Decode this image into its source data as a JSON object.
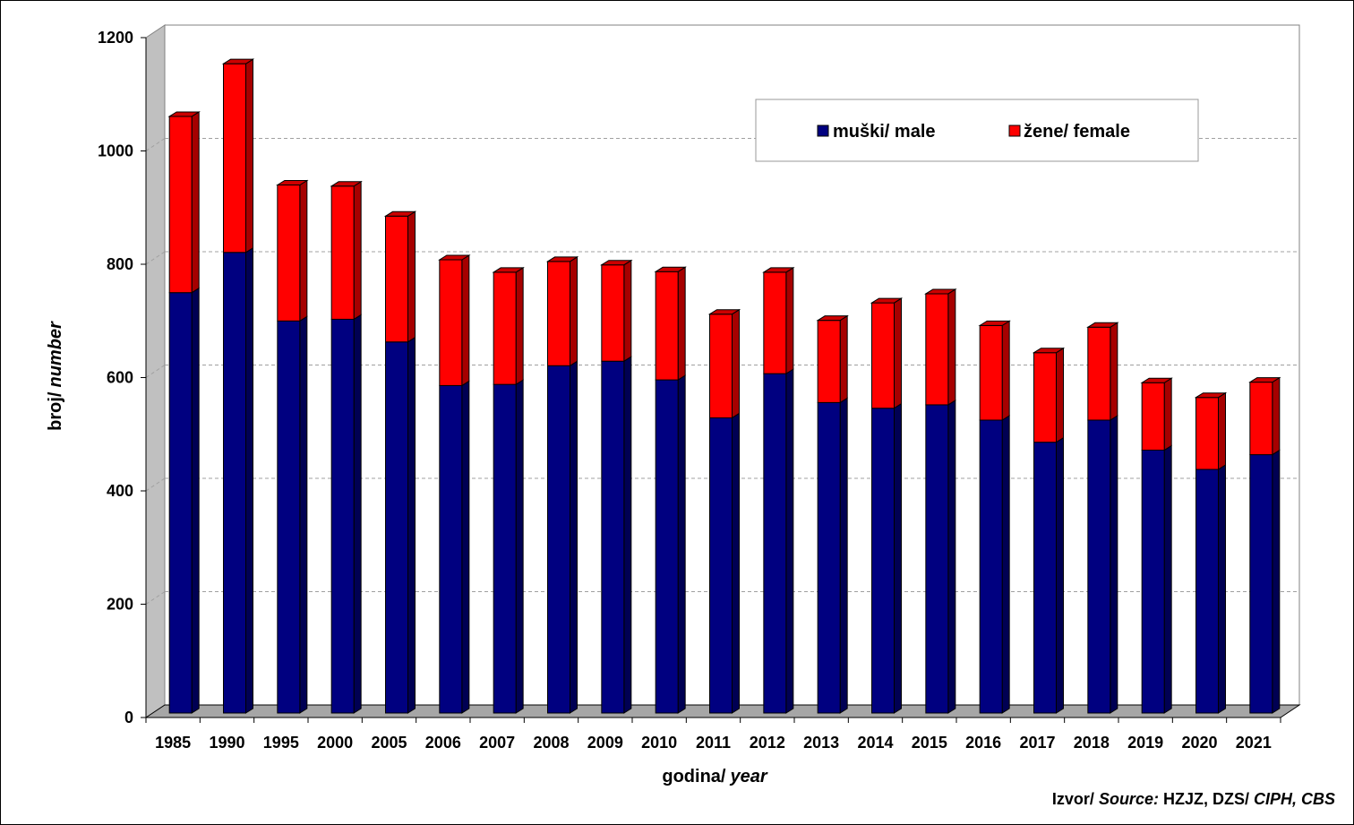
{
  "chart_data": {
    "type": "bar",
    "stacked": true,
    "three_d": true,
    "categories": [
      "1985",
      "1990",
      "1995",
      "2000",
      "2005",
      "2006",
      "2007",
      "2008",
      "2009",
      "2010",
      "2011",
      "2012",
      "2013",
      "2014",
      "2015",
      "2016",
      "2017",
      "2018",
      "2019",
      "2020",
      "2021"
    ],
    "series": [
      {
        "name": "muški/ male",
        "color": "#000080",
        "values": [
          742,
          813,
          692,
          695,
          655,
          578,
          580,
          613,
          621,
          588,
          521,
          599,
          548,
          538,
          544,
          517,
          478,
          517,
          464,
          430,
          456
        ]
      },
      {
        "name": "žene/ female",
        "color": "#ff0000",
        "values": [
          311,
          333,
          240,
          235,
          222,
          222,
          198,
          184,
          170,
          191,
          183,
          179,
          145,
          186,
          196,
          167,
          158,
          164,
          119,
          127,
          128
        ]
      }
    ],
    "ylim": [
      0,
      1200
    ],
    "yticks": [
      0,
      200,
      400,
      600,
      800,
      1000,
      1200
    ],
    "ylabel": {
      "main": "broj/",
      "italic": "number"
    },
    "xlabel": {
      "main": "godina/",
      "italic": "year"
    },
    "grid": true,
    "legend_position": "top-right",
    "colors": {
      "male": "#000080",
      "female": "#ff0000",
      "floor": "#a6a6a6",
      "wall": "#c0c0c0",
      "grid": "#a0a0a0"
    }
  },
  "source": {
    "prefix": "Izvor/ ",
    "italic_label": "Source:",
    "text": " HZJZ, DZS/ ",
    "italic_text": "CIPH, CBS"
  }
}
